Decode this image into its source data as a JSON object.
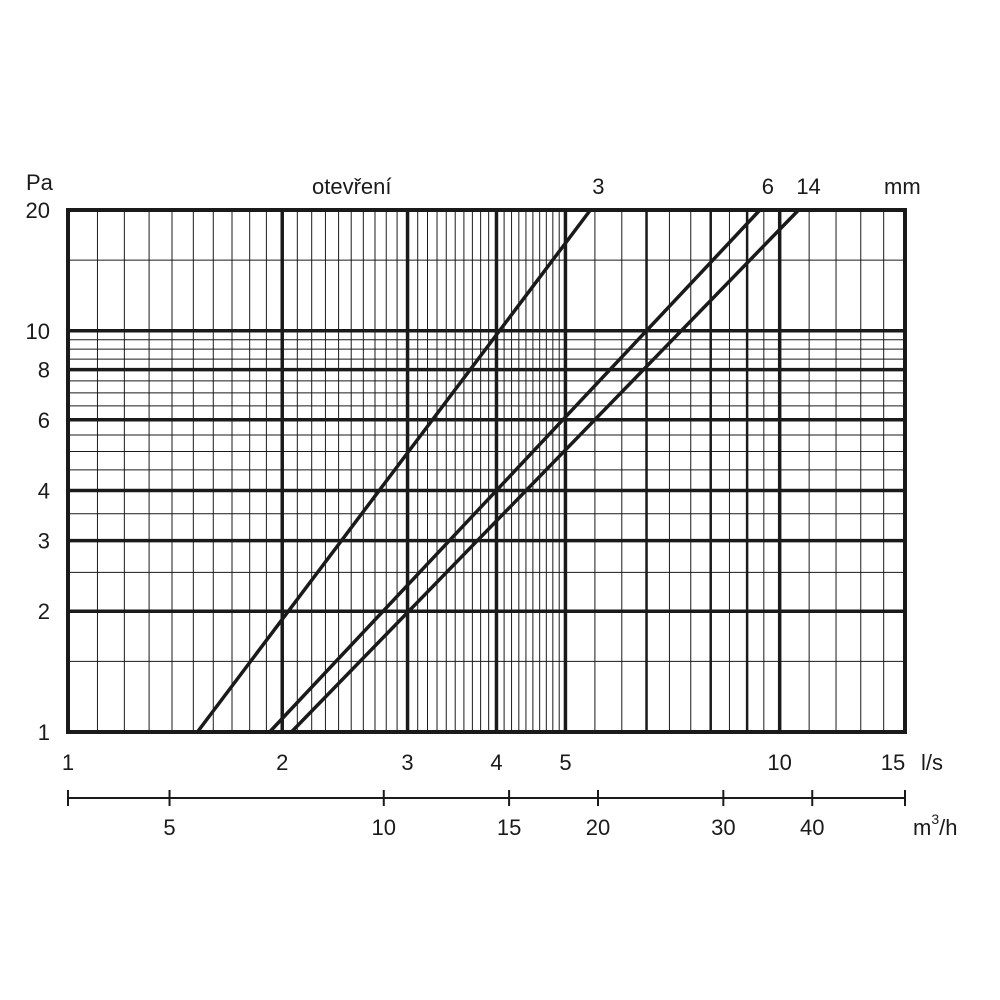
{
  "chart_data": {
    "type": "line",
    "x_scale": "log",
    "y_scale": "log",
    "y_unit_label": "Pa",
    "top_caption": "otevření",
    "opening_unit_label": "mm",
    "x_unit_label": "l/s",
    "secondary_x_unit_label": {
      "base": "m",
      "sup": "3",
      "tail": "/h"
    },
    "xlim": [
      1,
      15
    ],
    "ylim": [
      1,
      20
    ],
    "x_tick_labels": [
      "1",
      "2",
      "3",
      "4",
      "5",
      "10",
      "15"
    ],
    "y_tick_labels": [
      "1",
      "2",
      "3",
      "4",
      "6",
      "8",
      "10",
      "20"
    ],
    "secondary_x_tick_labels": [
      "5",
      "10",
      "15",
      "20",
      "30",
      "40"
    ],
    "grid": true,
    "series": [
      {
        "name": "3",
        "x": [
          1.52,
          5.42
        ],
        "y": [
          1,
          20
        ]
      },
      {
        "name": "6",
        "x": [
          1.92,
          9.38
        ],
        "y": [
          1,
          20
        ]
      },
      {
        "name": "14",
        "x": [
          2.06,
          10.63
        ],
        "y": [
          1,
          20
        ]
      }
    ]
  }
}
